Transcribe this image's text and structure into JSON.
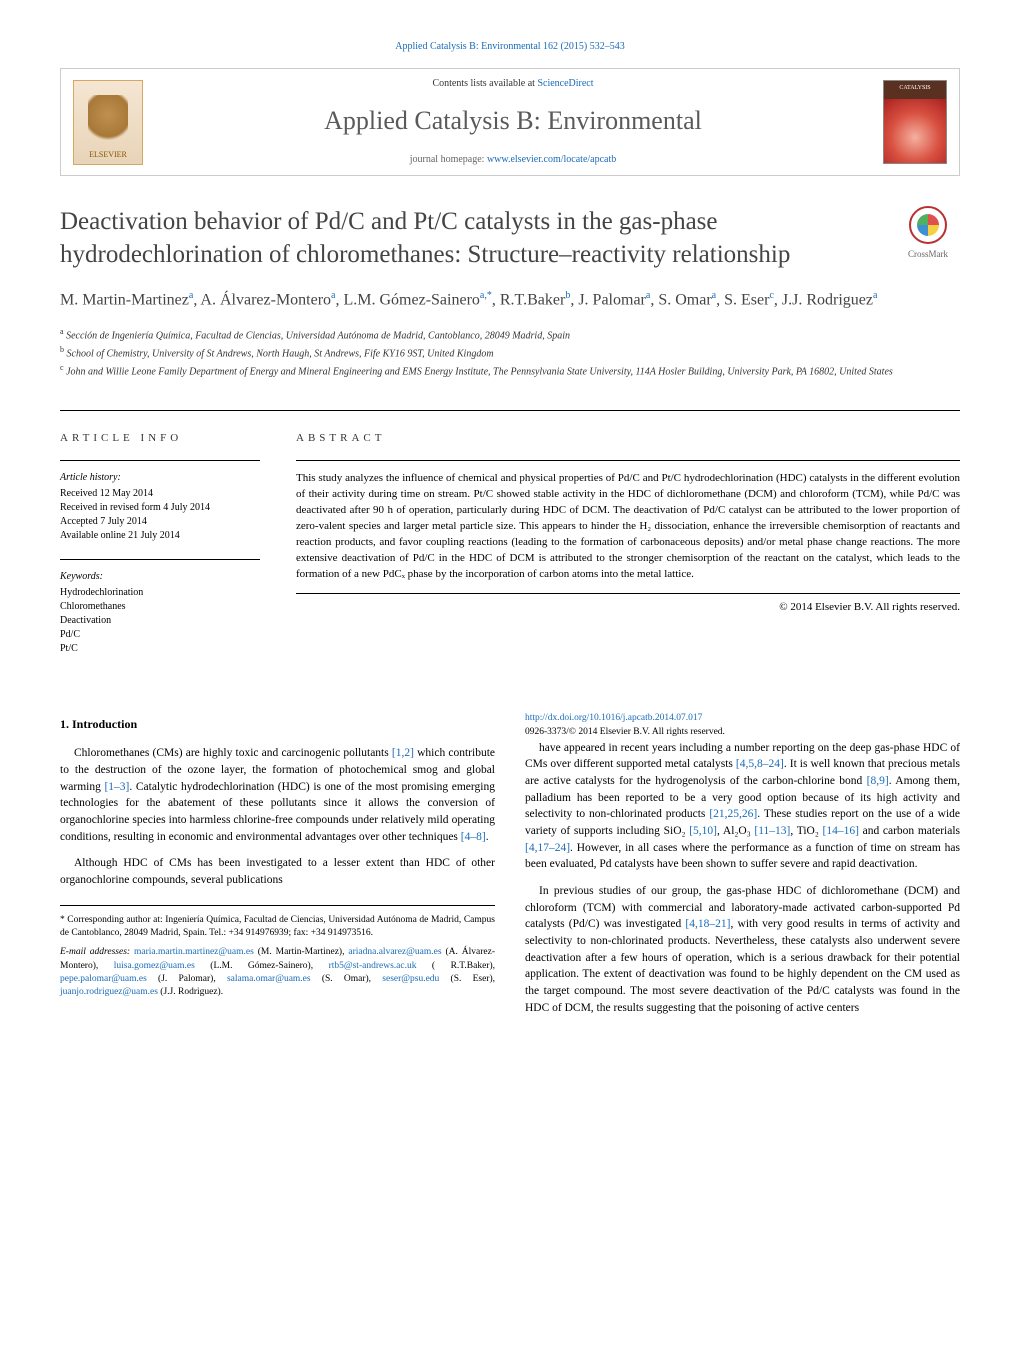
{
  "banner": {
    "contents_prefix": "Contents lists available at ",
    "contents_link": "ScienceDirect",
    "journal_name": "Applied Catalysis B: Environmental",
    "homepage_prefix": "journal homepage: ",
    "homepage_url": "www.elsevier.com/locate/apcatb",
    "elsevier": "ELSEVIER",
    "cover_label": "CATALYSIS"
  },
  "crossmark": "CrossMark",
  "title": "Deactivation behavior of Pd/C and Pt/C catalysts in the gas-phase hydrodechlorination of chloromethanes: Structure–reactivity relationship",
  "authors_html": "M. Martin-Martinez<sup>a</sup>, A. Álvarez-Montero<sup>a</sup>, L.M. Gómez-Sainero<sup>a,*</sup>, R.T.Baker<sup>b</sup>, J. Palomar<sup>a</sup>, S. Omar<sup>a</sup>, S. Eser<sup>c</sup>, J.J. Rodriguez<sup>a</sup>",
  "affiliations": [
    "a Sección de Ingeniería Química, Facultad de Ciencias, Universidad Autónoma de Madrid, Cantoblanco, 28049 Madrid, Spain",
    "b School of Chemistry, University of St Andrews, North Haugh, St Andrews, Fife KY16 9ST, United Kingdom",
    "c John and Willie Leone Family Department of Energy and Mineral Engineering and EMS Energy Institute, The Pennsylvania State University, 114A Hosler Building, University Park, PA 16802, United States"
  ],
  "meta": {
    "article_info_label": "ARTICLE INFO",
    "history_label": "Article history:",
    "received": "Received 12 May 2014",
    "revised": "Received in revised form 4 July 2014",
    "accepted": "Accepted 7 July 2014",
    "online": "Available online 21 July 2014",
    "keywords_label": "Keywords:",
    "keywords": [
      "Hydrodechlorination",
      "Chloromethanes",
      "Deactivation",
      "Pd/C",
      "Pt/C"
    ]
  },
  "abstract": {
    "label": "ABSTRACT",
    "text": "This study analyzes the influence of chemical and physical properties of Pd/C and Pt/C hydrodechlorination (HDC) catalysts in the different evolution of their activity during time on stream. Pt/C showed stable activity in the HDC of dichloromethane (DCM) and chloroform (TCM), while Pd/C was deactivated after 90 h of operation, particularly during HDC of DCM. The deactivation of Pd/C catalyst can be attributed to the lower proportion of zero-valent species and larger metal particle size. This appears to hinder the H₂ dissociation, enhance the irreversible chemisorption of reactants and reaction products, and favor coupling reactions (leading to the formation of carbonaceous deposits) and/or metal phase change reactions. The more extensive deactivation of Pd/C in the HDC of DCM is attributed to the stronger chemisorption of the reactant on the catalyst, which leads to the formation of a new PdCₓ phase by the incorporation of carbon atoms into the metal lattice.",
    "copyright": "© 2014 Elsevier B.V. All rights reserved."
  },
  "intro": {
    "heading": "1. Introduction",
    "p1_a": "Chloromethanes (CMs) are highly toxic and carcinogenic pollutants ",
    "p1_ref1": "[1,2]",
    "p1_b": " which contribute to the destruction of the ozone layer, the formation of photochemical smog and global warming ",
    "p1_ref2": "[1–3]",
    "p1_c": ". Catalytic hydrodechlorination (HDC) is one of the most promising emerging technologies for the abatement of these pollutants since it allows the conversion of organochlorine species into harmless chlorine-free compounds under relatively mild operating conditions, resulting in economic and environmental advantages over other techniques ",
    "p1_ref3": "[4–8]",
    "p1_d": ".",
    "p2": "Although HDC of CMs has been investigated to a lesser extent than HDC of other organochlorine compounds, several publications",
    "p3_a": "have appeared in recent years including a number reporting on the deep gas-phase HDC of CMs over different supported metal catalysts ",
    "p3_ref1": "[4,5,8–24]",
    "p3_b": ". It is well known that precious metals are active catalysts for the hydrogenolysis of the carbon-chlorine bond ",
    "p3_ref2": "[8,9]",
    "p3_c": ". Among them, palladium has been reported to be a very good option because of its high activity and selectivity to non-chlorinated products ",
    "p3_ref3": "[21,25,26]",
    "p3_d": ". These studies report on the use of a wide variety of supports including SiO₂ ",
    "p3_ref4": "[5,10]",
    "p3_e": ", Al₂O₃ ",
    "p3_ref5": "[11–13]",
    "p3_f": ", TiO₂ ",
    "p3_ref6": "[14–16]",
    "p3_g": " and carbon materials ",
    "p3_ref7": "[4,17–24]",
    "p3_h": ". However, in all cases where the performance as a function of time on stream has been evaluated, Pd catalysts have been shown to suffer severe and rapid deactivation.",
    "p4_a": "In previous studies of our group, the gas-phase HDC of dichloromethane (DCM) and chloroform (TCM) with commercial and laboratory-made activated carbon-supported Pd catalysts (Pd/C) was investigated ",
    "p4_ref1": "[4,18–21]",
    "p4_b": ", with very good results in terms of activity and selectivity to non-chlorinated products. Nevertheless, these catalysts also underwent severe deactivation after a few hours of operation, which is a serious drawback for their potential application. The extent of deactivation was found to be highly dependent on the CM used as the target compound. The most severe deactivation of the Pd/C catalysts was found in the HDC of DCM, the results suggesting that the poisoning of active centers"
  },
  "footnote": {
    "corresp": "* Corresponding author at: Ingeniería Química, Facultad de Ciencias, Universidad Autónoma de Madrid, Campus de Cantoblanco, 28049 Madrid, Spain. Tel.: +34 914976939; fax: +34 914973516.",
    "emails_label": "E-mail addresses: ",
    "emails": [
      {
        "addr": "maria.martin.martinez@uam.es",
        "who": " (M. Martin-Martinez), "
      },
      {
        "addr": "ariadna.alvarez@uam.es",
        "who": " (A. Álvarez-Montero), "
      },
      {
        "addr": "luisa.gomez@uam.es",
        "who": " (L.M. Gómez-Sainero), "
      },
      {
        "addr": "rtb5@st-andrews.ac.uk",
        "who": " ( R.T.Baker), "
      },
      {
        "addr": "pepe.palomar@uam.es",
        "who": " (J. Palomar), "
      },
      {
        "addr": "salama.omar@uam.es",
        "who": " (S. Omar), "
      },
      {
        "addr": "seser@psu.edu",
        "who": " (S. Eser), "
      },
      {
        "addr": "juanjo.rodriguez@uam.es",
        "who": " (J.J. Rodriguez)."
      }
    ]
  },
  "doi": {
    "url": "http://dx.doi.org/10.1016/j.apcatb.2014.07.017",
    "issn_line": "0926-3373/© 2014 Elsevier B.V. All rights reserved."
  },
  "citation_line": "Applied Catalysis B: Environmental 162 (2015) 532–543",
  "colors": {
    "link": "#1a6bb8",
    "text": "#000000",
    "title_gray": "#444444"
  }
}
